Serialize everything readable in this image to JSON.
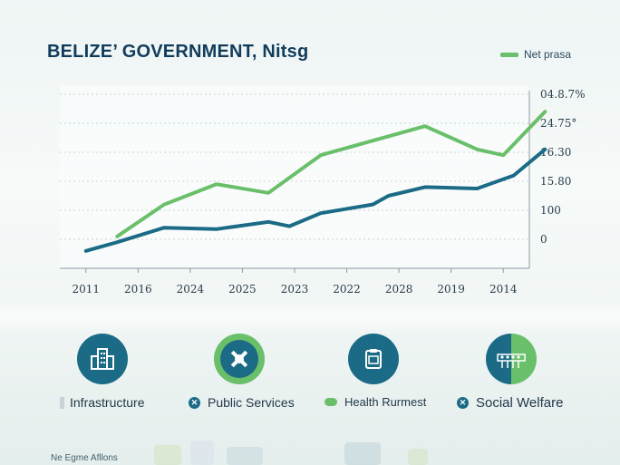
{
  "title": "BELIZE’ GOVERNMENT, Nitsg",
  "legend": {
    "label": "Net prasa",
    "color": "#6abf6a"
  },
  "colors": {
    "green": "#6abf6a",
    "teal": "#1b6b86",
    "navy": "#123c5c"
  },
  "chart_data": {
    "type": "line",
    "title": "BELIZE’ GOVERNMENT, Nitsg",
    "categories": [
      "2011",
      "2016",
      "2024",
      "2025",
      "2023",
      "2022",
      "2028",
      "2019",
      "2014"
    ],
    "y_ticks": [
      "04.8.7%",
      "24.75°",
      "16.30",
      "15.80",
      "100",
      "0"
    ],
    "grid": true,
    "legend_position": "top-right",
    "series": [
      {
        "name": "Net prasa",
        "color": "#6abf6a",
        "points": [
          [
            0.6,
            0.1
          ],
          [
            1.5,
            1.2
          ],
          [
            2.5,
            1.9
          ],
          [
            3.5,
            1.6
          ],
          [
            4.5,
            2.9
          ],
          [
            5.5,
            3.4
          ],
          [
            6.5,
            3.9
          ],
          [
            7.5,
            3.1
          ],
          [
            8.0,
            2.9
          ],
          [
            8.8,
            4.4
          ]
        ]
      },
      {
        "name": "",
        "color": "#1b6b86",
        "points": [
          [
            0.0,
            -0.4
          ],
          [
            0.6,
            -0.1
          ],
          [
            1.5,
            0.4
          ],
          [
            2.5,
            0.35
          ],
          [
            3.5,
            0.6
          ],
          [
            3.9,
            0.45
          ],
          [
            4.5,
            0.9
          ],
          [
            5.5,
            1.2
          ],
          [
            5.8,
            1.5
          ],
          [
            6.5,
            1.8
          ],
          [
            7.5,
            1.75
          ],
          [
            8.2,
            2.2
          ],
          [
            8.8,
            3.1
          ]
        ]
      }
    ]
  },
  "categories_row": [
    {
      "label": "Infrastructure",
      "icon": "building-icon",
      "color": "#1b6b86"
    },
    {
      "label": "Public Services",
      "icon": "puzzle-icon",
      "color": "#6abf6a"
    },
    {
      "label": "Health Rurmest",
      "icon": "clipboard-icon",
      "color": "#1b6b86"
    },
    {
      "label": "Social Welfare",
      "icon": "people-icon",
      "color": "#1b6b86"
    }
  ],
  "footer": "Ne Egme Afllons"
}
